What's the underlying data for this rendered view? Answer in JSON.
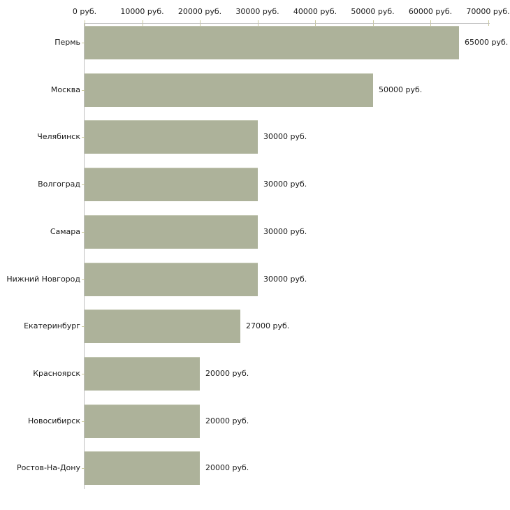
{
  "chart_data": {
    "type": "bar",
    "orientation": "horizontal",
    "title": "",
    "categories": [
      "Пермь",
      "Москва",
      "Челябинск",
      "Волгоград",
      "Самара",
      "Нижний Новгород",
      "Екатеринбург",
      "Красноярск",
      "Новосибирск",
      "Ростов-На-Дону"
    ],
    "values": [
      65000,
      50000,
      30000,
      30000,
      30000,
      30000,
      27000,
      20000,
      20000,
      20000
    ],
    "value_labels": [
      "65000 руб.",
      "50000 руб.",
      "30000 руб.",
      "30000 руб.",
      "30000 руб.",
      "30000 руб.",
      "27000 руб.",
      "20000 руб.",
      "20000 руб.",
      "20000 руб."
    ],
    "unit": "руб.",
    "x_axis": {
      "position": "top",
      "min": 0,
      "max": 70000,
      "step": 10000,
      "tick_labels": [
        "0 руб.",
        "10000 руб.",
        "20000 руб.",
        "30000 руб.",
        "40000 руб.",
        "50000 руб.",
        "60000 руб.",
        "70000 руб."
      ]
    },
    "grid": false,
    "legend": false,
    "colors": {
      "bar": "#adb29a",
      "axis_line": "#c0c0c0",
      "tick_mark": "#c9c89c",
      "text": "#1a1a1a",
      "background": "#ffffff"
    }
  }
}
